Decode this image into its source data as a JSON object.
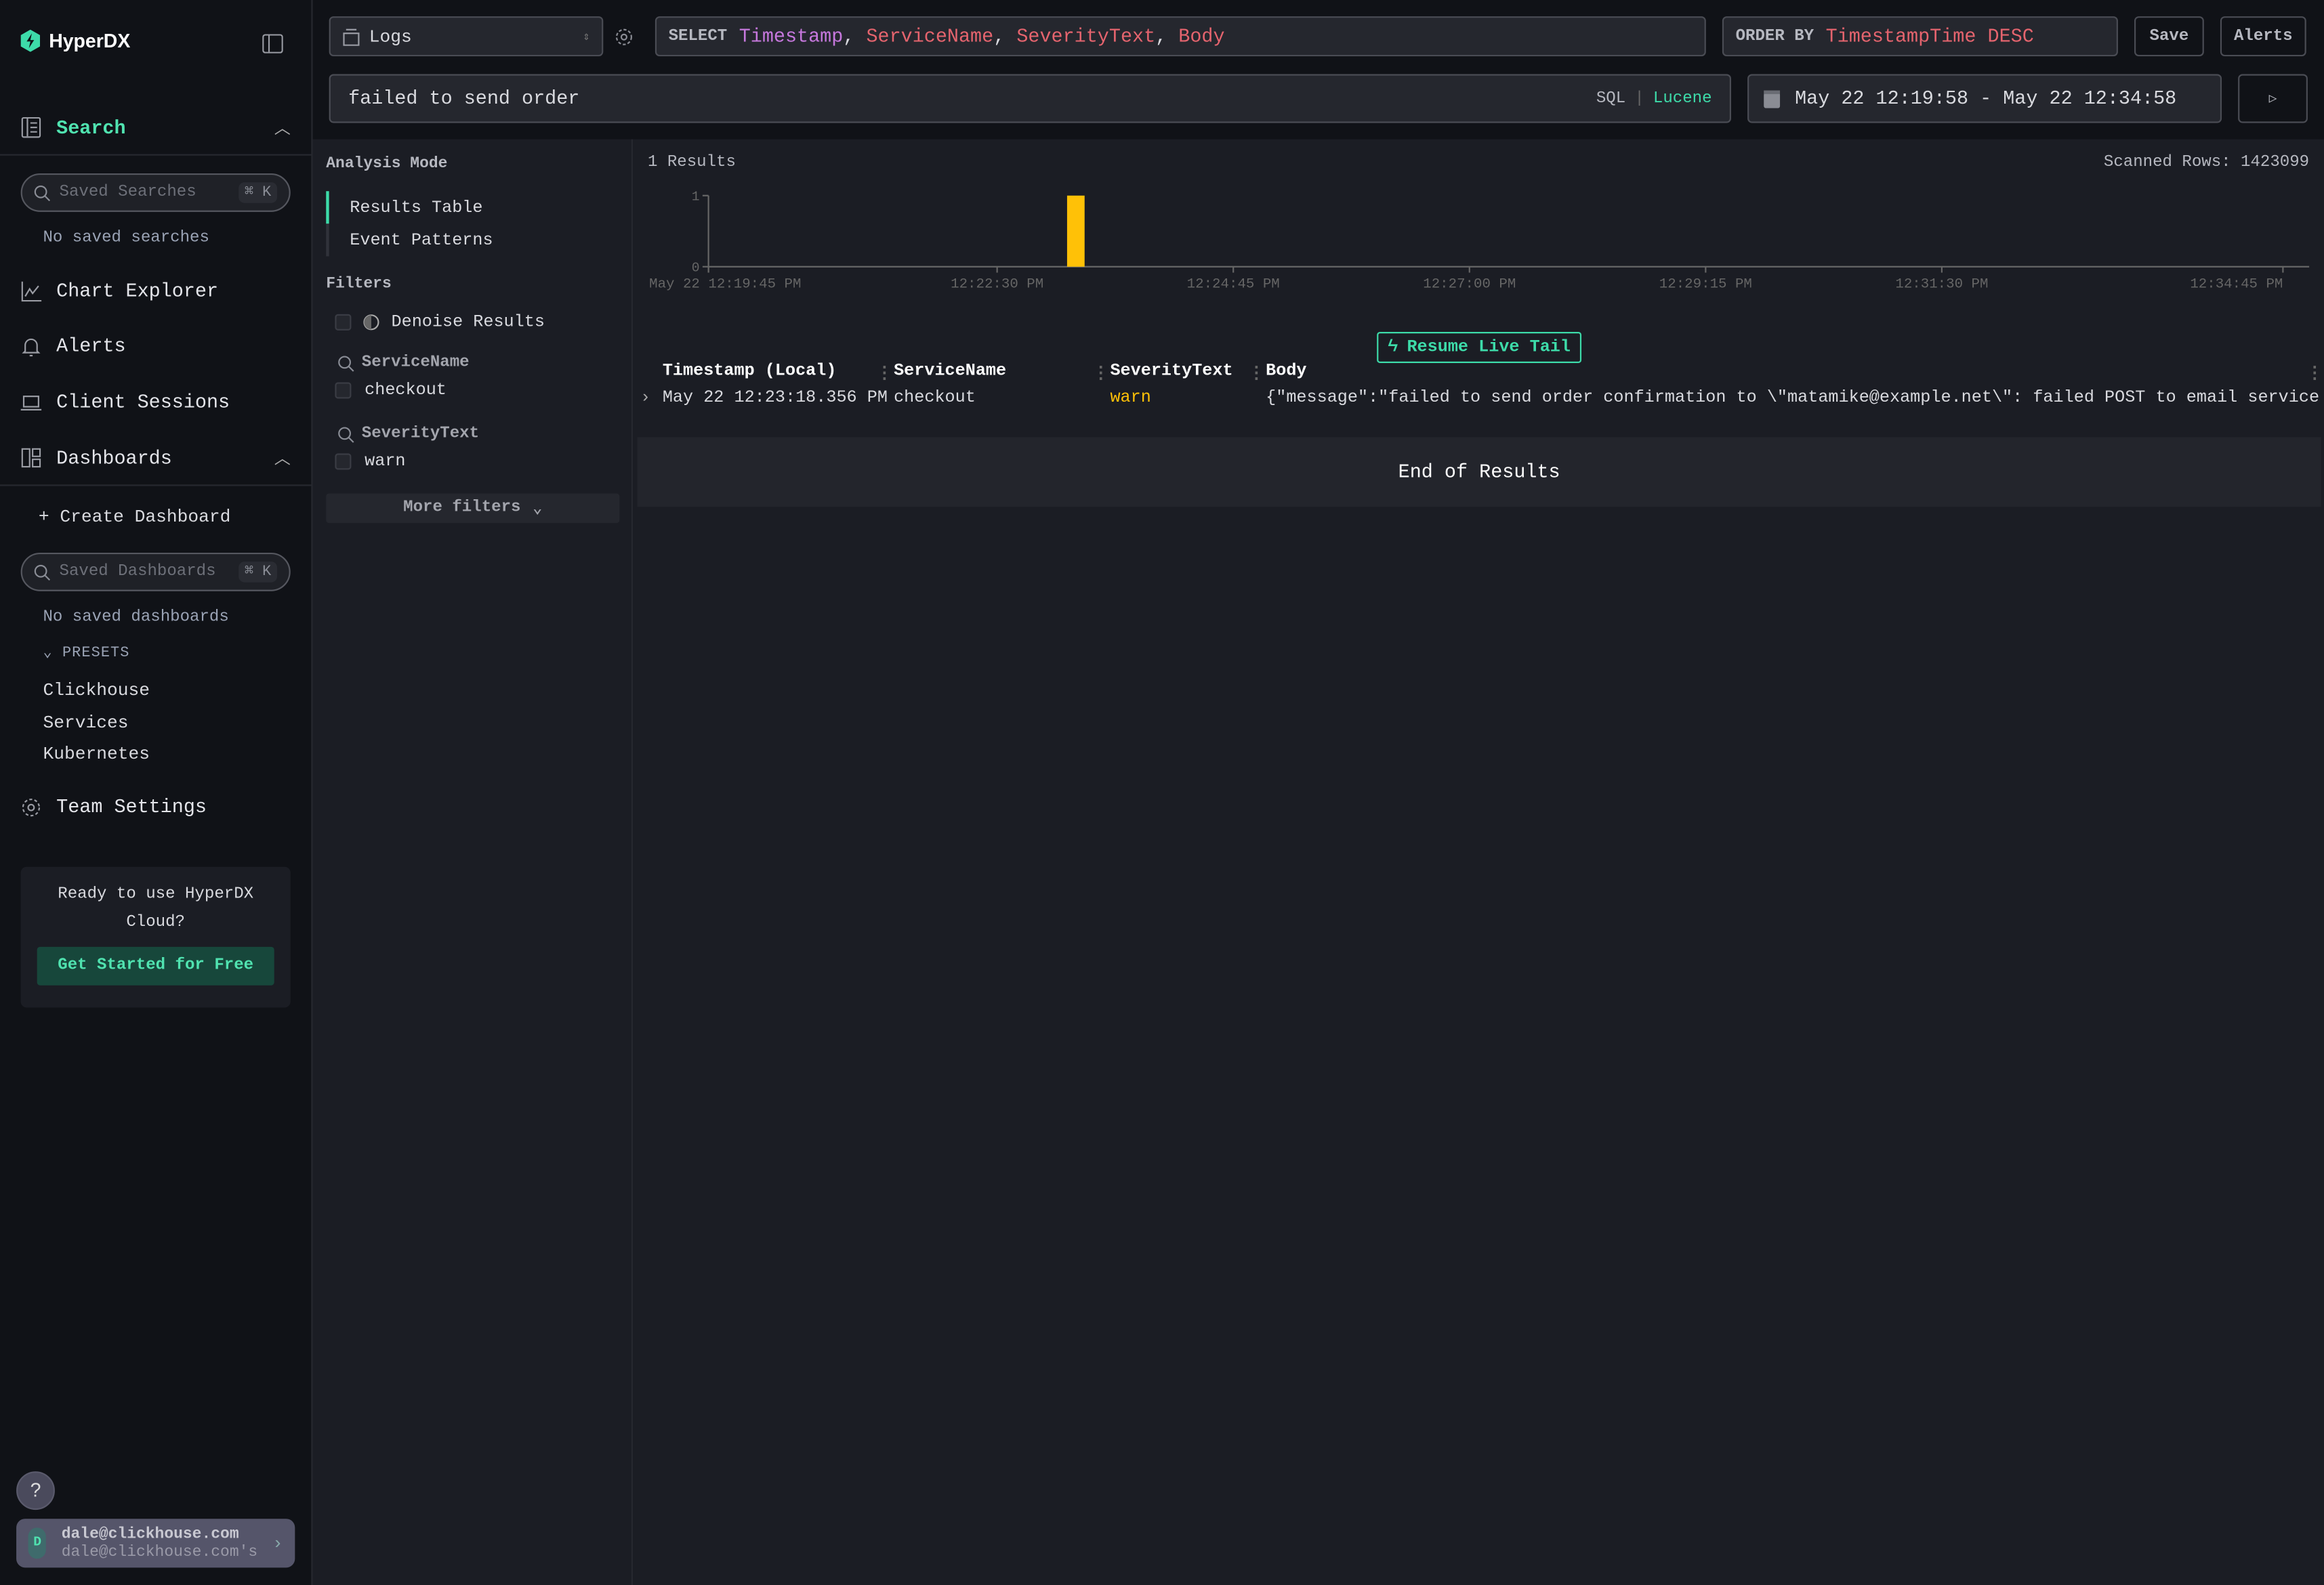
{
  "app": {
    "name": "HyperDX"
  },
  "sidebar": {
    "search_label": "Search",
    "saved_searches_placeholder": "Saved Searches",
    "shortcut": "⌘ K",
    "no_saved_searches": "No saved searches",
    "chart_explorer": "Chart Explorer",
    "alerts": "Alerts",
    "client_sessions": "Client Sessions",
    "dashboards": "Dashboards",
    "create_dashboard": "+ Create Dashboard",
    "saved_dashboards_placeholder": "Saved Dashboards",
    "no_saved_dashboards": "No saved dashboards",
    "presets_label": "PRESETS",
    "presets": [
      "Clickhouse",
      "Services",
      "Kubernetes"
    ],
    "team_settings": "Team Settings",
    "cloud_promo": "Ready to use HyperDX Cloud?",
    "cloud_button": "Get Started for Free",
    "help": "?",
    "user": {
      "initial": "D",
      "email": "dale@clickhouse.com",
      "team": "dale@clickhouse.com's"
    }
  },
  "toolbar": {
    "source": "Logs",
    "select_keyword": "SELECT",
    "select_columns": [
      {
        "text": "Timestamp",
        "color": "#c678dd"
      },
      {
        "text": ", ",
        "color": "#d9dadf"
      },
      {
        "text": "ServiceName",
        "color": "#e5646e"
      },
      {
        "text": ", ",
        "color": "#d9dadf"
      },
      {
        "text": "SeverityText",
        "color": "#e5646e"
      },
      {
        "text": ", ",
        "color": "#d9dadf"
      },
      {
        "text": "Body",
        "color": "#e5646e"
      }
    ],
    "order_keyword": "ORDER BY",
    "order_value": "TimestampTime DESC",
    "save": "Save",
    "alerts": "Alerts",
    "query": "failed to send order",
    "lang_sql": "SQL",
    "lang_sep": "|",
    "lang_lucene": "Lucene",
    "time_range": "May 22 12:19:58 - May 22 12:34:58"
  },
  "filters": {
    "analysis_mode": "Analysis Mode",
    "modes": [
      "Results Table",
      "Event Patterns"
    ],
    "title": "Filters",
    "denoise": "Denoise Results",
    "groups": [
      {
        "name": "ServiceName",
        "values": [
          "checkout"
        ]
      },
      {
        "name": "SeverityText",
        "values": [
          "warn"
        ]
      }
    ],
    "more": "More filters"
  },
  "results": {
    "count": "1 Results",
    "scanned": "Scanned Rows: 1423099",
    "resume": "Resume Live Tail",
    "columns": [
      "Timestamp (Local)",
      "ServiceName",
      "SeverityText",
      "Body"
    ],
    "rows": [
      {
        "timestamp": "May 22 12:23:18.356 PM",
        "service": "checkout",
        "severity": "warn",
        "body": "{\"message\":\"failed to send order confirmation to \\\"matamike@example.net\\\": failed POST to email service: ex…"
      }
    ],
    "end": "End of Results"
  },
  "chart_data": {
    "type": "bar",
    "x_domain": [
      "12:19:45",
      "12:35:00"
    ],
    "ylim": [
      0,
      1
    ],
    "y_ticks": [
      "0",
      "1"
    ],
    "x_ticks": [
      {
        "t": "12:19:45",
        "label": "May 22 12:19:45 PM"
      },
      {
        "t": "12:22:30",
        "label": "12:22:30 PM"
      },
      {
        "t": "12:24:45",
        "label": "12:24:45 PM"
      },
      {
        "t": "12:27:00",
        "label": "12:27:00 PM"
      },
      {
        "t": "12:29:15",
        "label": "12:29:15 PM"
      },
      {
        "t": "12:31:30",
        "label": "12:31:30 PM"
      },
      {
        "t": "12:34:45",
        "label": "12:34:45 PM"
      }
    ],
    "bars": [
      {
        "start": "12:23:10",
        "end": "12:23:20",
        "value": 1
      }
    ],
    "bar_color": "#ffc107",
    "grid": false
  },
  "colors": {
    "accent": "#3ddba9",
    "warn": "#ffc107"
  }
}
